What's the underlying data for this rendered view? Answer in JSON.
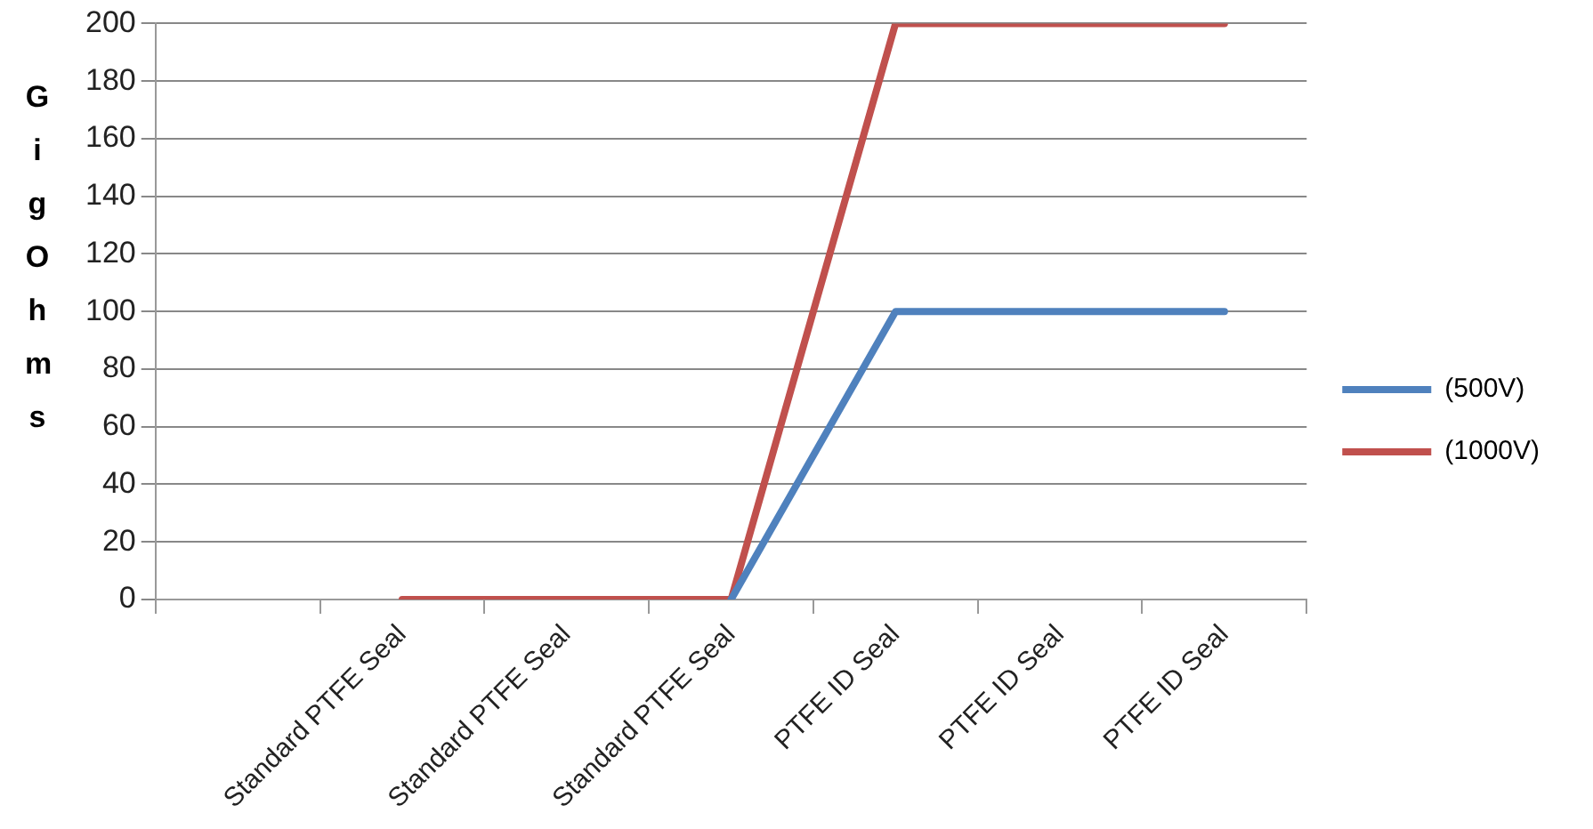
{
  "chart_data": {
    "type": "line",
    "ylabel": "GigOhms",
    "categories": [
      null,
      "Standard PTFE Seal",
      "Standard PTFE Seal",
      "Standard PTFE Seal",
      "PTFE ID Seal",
      "PTFE ID Seal",
      "PTFE ID Seal"
    ],
    "series": [
      {
        "name": "(500V)",
        "color": "#4f81bd",
        "values": [
          null,
          null,
          null,
          0,
          100,
          100,
          100
        ]
      },
      {
        "name": "(1000V)",
        "color": "#c0504d",
        "values": [
          null,
          0,
          0,
          0,
          200,
          200,
          200
        ]
      }
    ],
    "ylim": [
      0,
      200
    ],
    "yticks": [
      0,
      20,
      40,
      60,
      80,
      100,
      120,
      140,
      160,
      180,
      200
    ],
    "grid": "y",
    "legend": "right",
    "marker": "none",
    "line_style": "solid"
  }
}
